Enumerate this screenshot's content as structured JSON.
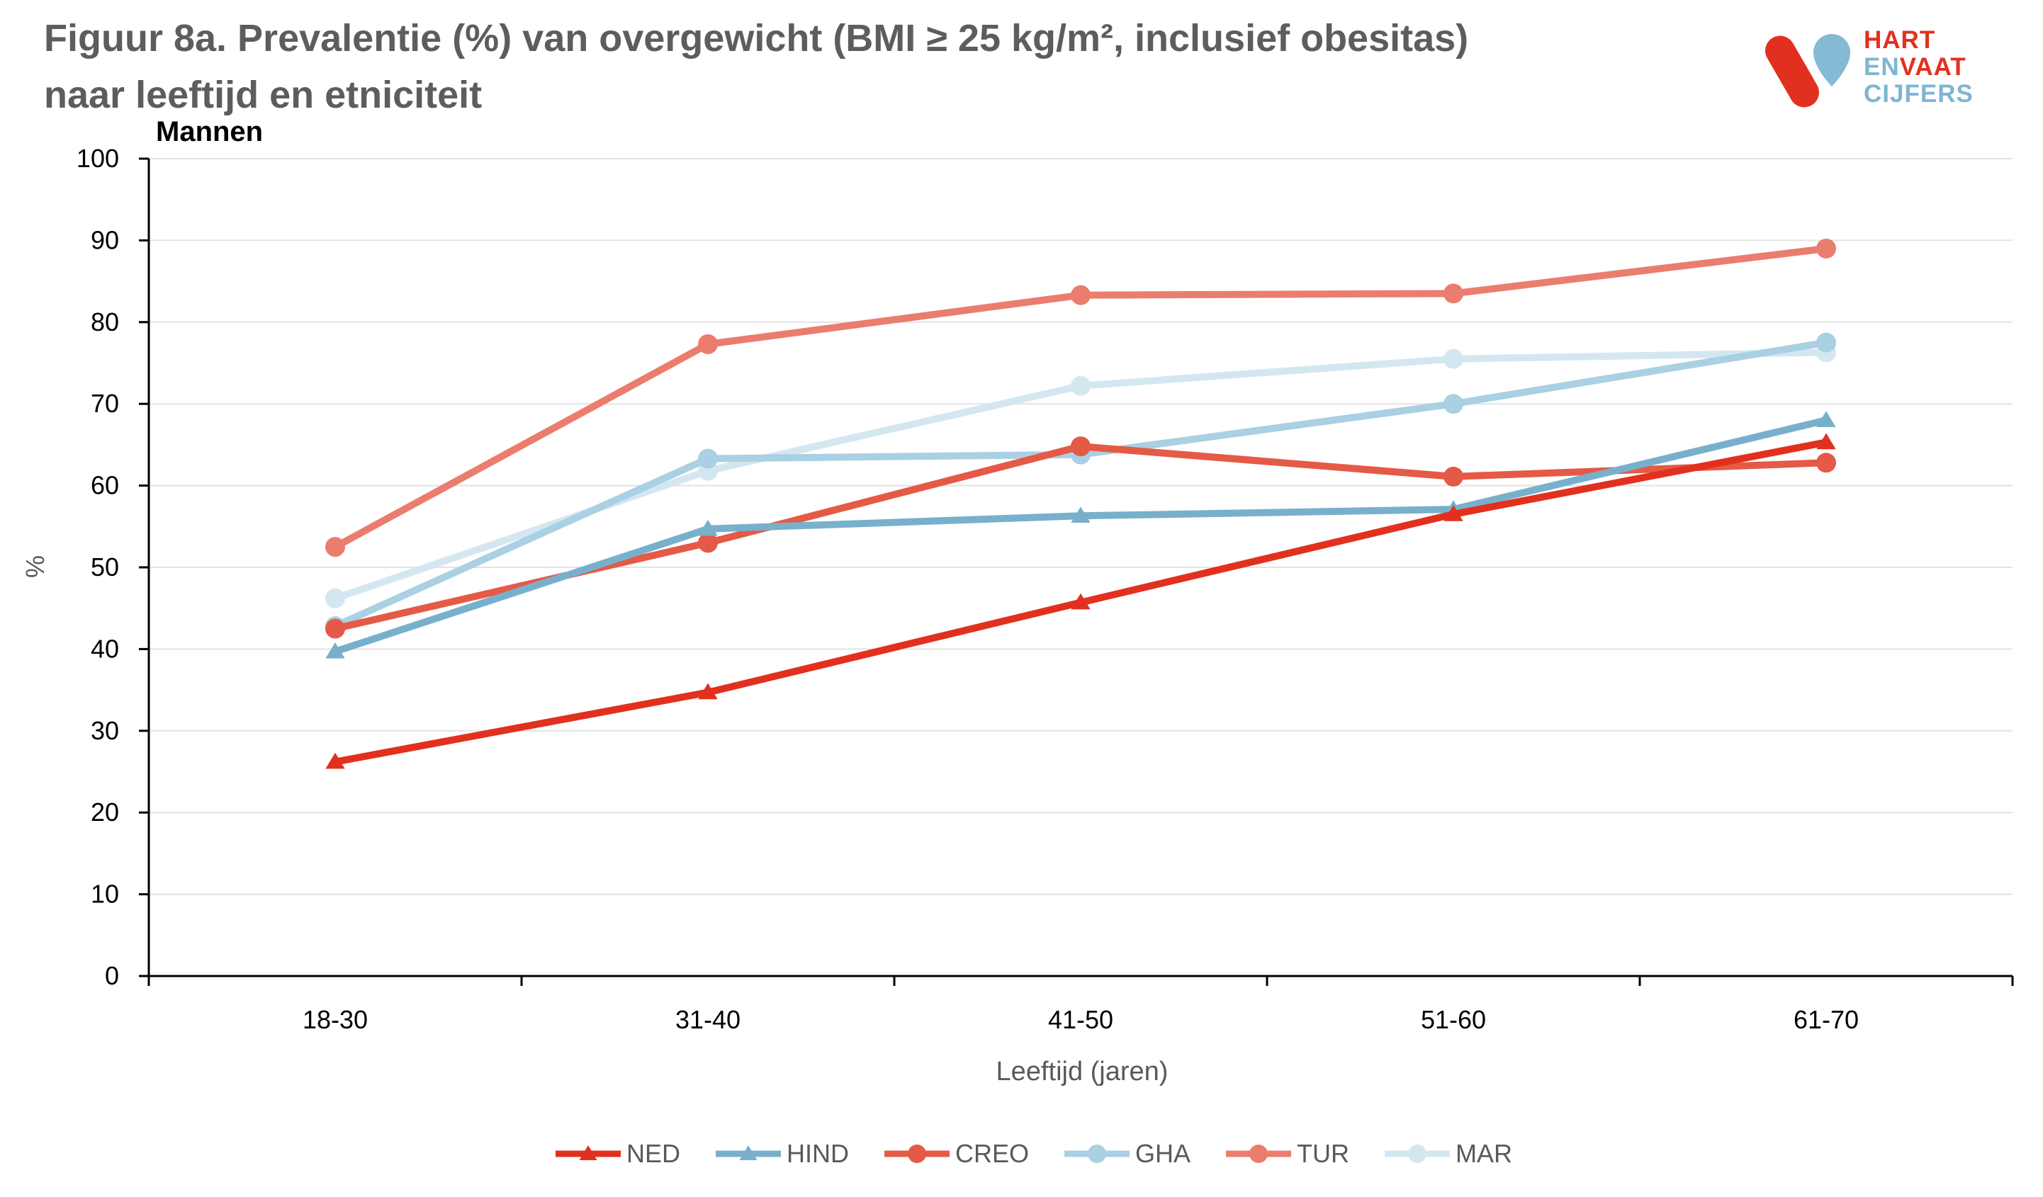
{
  "title_line1": "Figuur 8a. Prevalentie (%) van overgewicht (BMI ≥  25 kg/m², inclusief obesitas)",
  "title_line2": "naar leeftijd en etniciteit",
  "logo": {
    "line1": "HART",
    "line2a": "EN",
    "line2b": "VAAT",
    "line3": "CIJFERS"
  },
  "chart_data": {
    "type": "line",
    "subtitle": "Mannen",
    "xlabel": "Leeftijd (jaren)",
    "ylabel": "%",
    "ylim": [
      0,
      100
    ],
    "yticks": [
      0,
      10,
      20,
      30,
      40,
      50,
      60,
      70,
      80,
      90,
      100
    ],
    "categories": [
      "18-30",
      "31-40",
      "41-50",
      "51-60",
      "61-70"
    ],
    "grid": true,
    "legend_position": "bottom",
    "series": [
      {
        "name": "NED",
        "color": "#e2301f",
        "marker": "triangle",
        "values": [
          26.2,
          34.7,
          45.7,
          56.5,
          65.3
        ]
      },
      {
        "name": "HIND",
        "color": "#78b0cc",
        "marker": "triangle",
        "values": [
          39.7,
          54.7,
          56.3,
          57.1,
          68.0
        ]
      },
      {
        "name": "CREO",
        "color": "#e45a46",
        "marker": "circle",
        "values": [
          42.5,
          53.0,
          64.8,
          61.1,
          62.8
        ]
      },
      {
        "name": "GHA",
        "color": "#a9d0e3",
        "marker": "circle",
        "values": [
          42.8,
          63.3,
          63.8,
          70.0,
          77.5
        ]
      },
      {
        "name": "TUR",
        "color": "#eb7d6e",
        "marker": "circle",
        "values": [
          52.5,
          77.3,
          83.3,
          83.5,
          89.0
        ]
      },
      {
        "name": "MAR",
        "color": "#d4e7f1",
        "marker": "circle",
        "values": [
          46.2,
          61.8,
          72.2,
          75.5,
          76.3
        ]
      }
    ]
  }
}
